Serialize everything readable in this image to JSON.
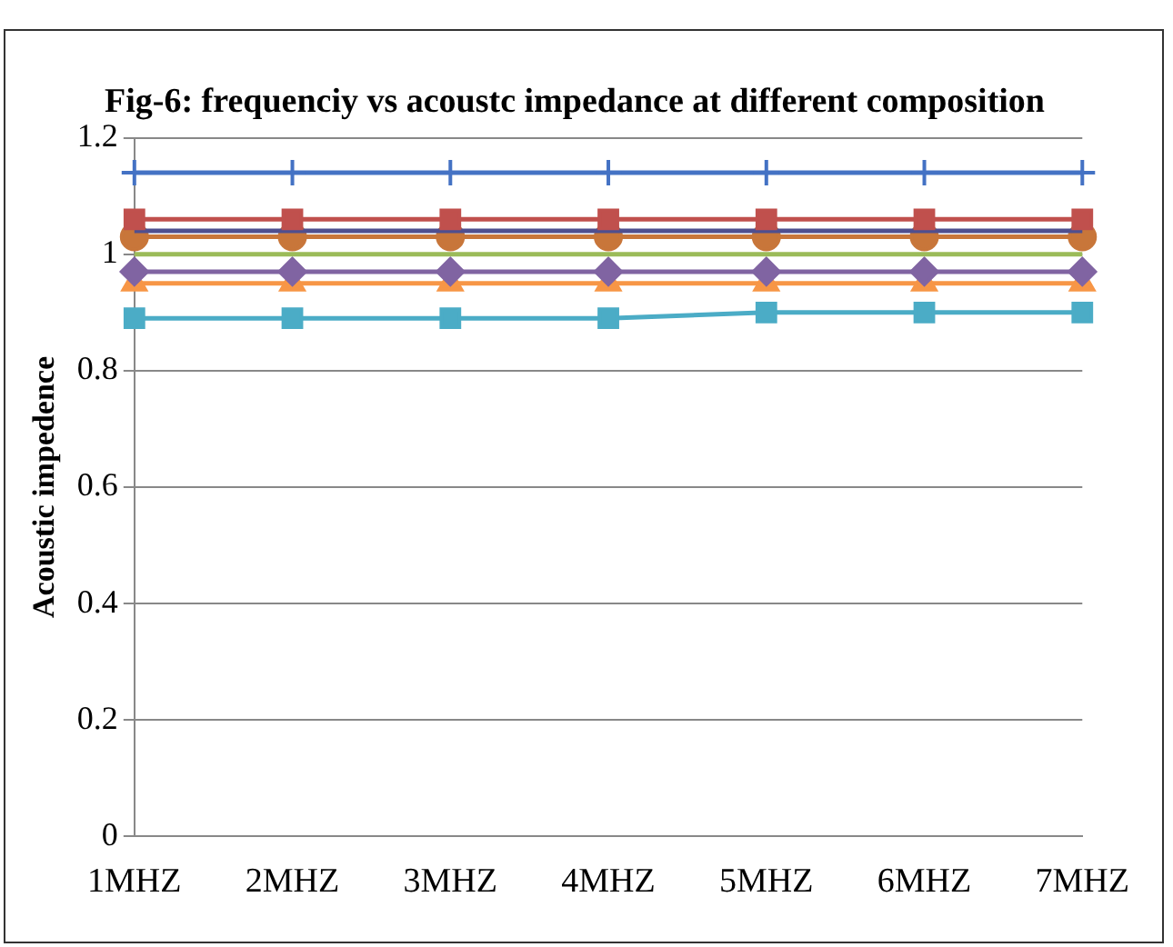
{
  "chart_data": {
    "type": "line",
    "title": "Fig-6: frequenciy vs acoustc impedance at different composition",
    "ylabel": "Acoustic impedence",
    "categories": [
      "1MHZ",
      "2MHZ",
      "3MHZ",
      "4MHZ",
      "5MHZ",
      "6MHZ",
      "7MHZ"
    ],
    "series": [
      {
        "color": "#4472c4",
        "marker": "cross",
        "values": [
          1.14,
          1.14,
          1.14,
          1.14,
          1.14,
          1.14,
          1.14
        ]
      },
      {
        "color": "#c0504d",
        "marker": "square",
        "values": [
          1.06,
          1.06,
          1.06,
          1.06,
          1.06,
          1.06,
          1.06
        ]
      },
      {
        "color": "#4f4f8f",
        "marker": "none",
        "values": [
          1.04,
          1.04,
          1.04,
          1.04,
          1.04,
          1.04,
          1.04
        ]
      },
      {
        "color": "#c8763a",
        "marker": "circle",
        "values": [
          1.03,
          1.03,
          1.03,
          1.03,
          1.03,
          1.03,
          1.03
        ]
      },
      {
        "color": "#9bbb59",
        "marker": "none",
        "values": [
          1.0,
          1.0,
          1.0,
          1.0,
          1.0,
          1.0,
          1.0
        ]
      },
      {
        "color": "#8064a2",
        "marker": "diamond",
        "values": [
          0.97,
          0.97,
          0.97,
          0.97,
          0.97,
          0.97,
          0.97
        ]
      },
      {
        "color": "#f79646",
        "marker": "triangle",
        "values": [
          0.95,
          0.95,
          0.95,
          0.95,
          0.95,
          0.95,
          0.95
        ]
      },
      {
        "color": "#4bacc6",
        "marker": "square",
        "values": [
          0.89,
          0.89,
          0.89,
          0.89,
          0.9,
          0.9,
          0.9
        ]
      }
    ],
    "ylim": [
      0,
      1.2
    ],
    "yticks": [
      0,
      0.2,
      0.4,
      0.6,
      0.8,
      1,
      1.2
    ],
    "grid": "y",
    "legend": false
  }
}
